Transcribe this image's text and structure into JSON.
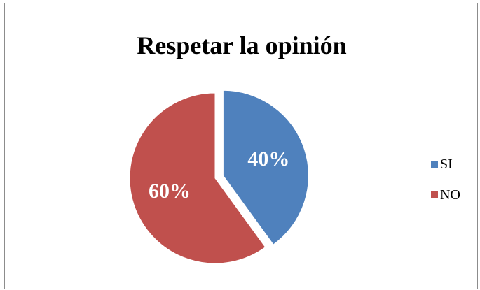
{
  "chart_data": {
    "type": "pie",
    "title": "Respetar la opinión",
    "categories": [
      "SI",
      "NO"
    ],
    "values": [
      40,
      60
    ],
    "data_labels": [
      "40%",
      "60%"
    ],
    "colors": [
      "#4f81bd",
      "#c0504d"
    ],
    "legend_position": "right",
    "exploded": true
  }
}
